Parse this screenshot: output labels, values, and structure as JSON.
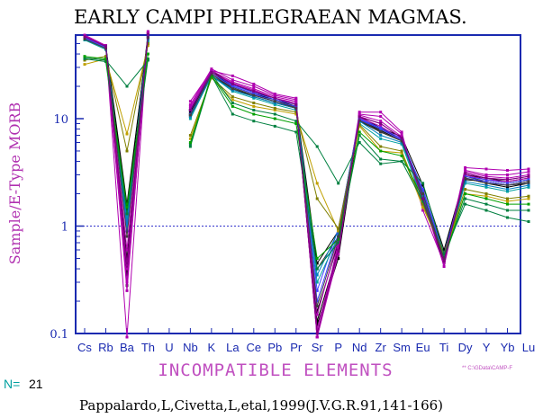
{
  "chart_data": {
    "type": "line",
    "title": "EARLY CAMPI PHLEGRAEAN MAGMAS.",
    "ylabel": "Sample/E-Type MORB",
    "xlabel": "INCOMPATIBLE ELEMENTS",
    "yscale": "log",
    "ylim": [
      0.1,
      60
    ],
    "yticks": [
      "0.1",
      "1",
      "10"
    ],
    "reference_line": 1,
    "categories": [
      "Cs",
      "Rb",
      "Ba",
      "Th",
      "U",
      "Nb",
      "K",
      "La",
      "Ce",
      "Pb",
      "Pr",
      "Sr",
      "P",
      "Nd",
      "Zr",
      "Sm",
      "Eu",
      "Ti",
      "Dy",
      "Y",
      "Yb",
      "Lu"
    ],
    "file_note": "** C:\\GData\\CAMP-F",
    "n_label": "N=",
    "n_value": "21",
    "citation": "Pappalardo,L,Civetta,L,etal,1999(J.V.G.R.91,141-166)",
    "series": [
      {
        "color": "#000000",
        "values": [
          58,
          48,
          1.6,
          58,
          null,
          11,
          26,
          19,
          16,
          14,
          12.5,
          0.13,
          0.6,
          9.5,
          7.5,
          6.2,
          2.2,
          0.5,
          2.8,
          2.5,
          2.3,
          2.5
        ]
      },
      {
        "color": "#000000",
        "values": [
          57,
          47,
          0.35,
          60,
          null,
          11.5,
          27,
          20,
          17,
          15,
          13,
          0.16,
          0.7,
          10,
          8,
          6.5,
          2.0,
          0.55,
          3.0,
          2.7,
          2.5,
          2.7
        ]
      },
      {
        "color": "#000000",
        "values": [
          59,
          47,
          1.4,
          62,
          null,
          12,
          28,
          21,
          17.5,
          15.5,
          13.5,
          0.45,
          0.9,
          10.5,
          8.2,
          6.8,
          2.4,
          0.6,
          3.0,
          2.8,
          2.6,
          2.8
        ]
      },
      {
        "color": "#000000",
        "values": [
          58,
          46,
          0.5,
          56,
          null,
          10.5,
          25,
          19,
          16.5,
          14.5,
          12.5,
          0.12,
          0.5,
          9.8,
          7.8,
          6.2,
          1.8,
          0.45,
          2.7,
          2.6,
          2.4,
          2.6
        ]
      },
      {
        "color": "#333333",
        "values": [
          56,
          46,
          0.28,
          58,
          null,
          11,
          26,
          19.5,
          16.5,
          14.5,
          12.8,
          0.4,
          0.8,
          10,
          7.5,
          6.3,
          2.2,
          0.5,
          2.9,
          2.6,
          2.4,
          2.5
        ]
      },
      {
        "color": "#b000b0",
        "values": [
          60,
          48,
          0.02,
          66,
          null,
          14.5,
          28,
          25,
          21,
          17,
          15.5,
          0.075,
          0.7,
          11.5,
          11.5,
          7.5,
          1.4,
          0.45,
          3.5,
          3.4,
          3.3,
          3.4
        ]
      },
      {
        "color": "#b000b0",
        "values": [
          59,
          48,
          0.25,
          64,
          null,
          13.5,
          29,
          23,
          20,
          16.5,
          15,
          0.055,
          0.6,
          11,
          10.5,
          7.2,
          1.6,
          0.5,
          3.3,
          3.0,
          3.0,
          3.2
        ]
      },
      {
        "color": "#b000b0",
        "values": [
          58,
          47,
          0.3,
          63,
          null,
          13,
          28,
          22,
          19,
          16,
          14.5,
          0.09,
          0.55,
          10.8,
          9.5,
          6.8,
          1.8,
          0.42,
          3.2,
          2.9,
          2.8,
          3.0
        ]
      },
      {
        "color": "#b000b0",
        "values": [
          58,
          46,
          0.4,
          62,
          null,
          12.5,
          27,
          21.5,
          18.5,
          15.5,
          14,
          0.11,
          0.65,
          10.5,
          9,
          6.6,
          1.9,
          0.48,
          3.1,
          2.8,
          2.7,
          2.9
        ]
      },
      {
        "color": "#b000b0",
        "values": [
          57,
          46,
          0.6,
          61,
          null,
          12,
          27,
          21,
          18,
          15.5,
          13.5,
          0.15,
          0.75,
          10.2,
          8.5,
          6.4,
          2.0,
          0.5,
          3.0,
          2.7,
          2.6,
          2.8
        ]
      },
      {
        "color": "#4040ff",
        "values": [
          57,
          47,
          0.9,
          60,
          null,
          12,
          27,
          20.5,
          17.5,
          15,
          13.5,
          0.2,
          0.85,
          10,
          8.2,
          6.5,
          2.1,
          0.52,
          2.9,
          2.7,
          2.5,
          2.7
        ]
      },
      {
        "color": "#4040ff",
        "values": [
          56,
          46,
          1.1,
          58,
          null,
          11,
          26,
          20,
          17,
          14.5,
          13,
          0.25,
          0.95,
          9.8,
          8,
          6.3,
          2.2,
          0.55,
          2.8,
          2.6,
          2.4,
          2.6
        ]
      },
      {
        "color": "#00a0a0",
        "values": [
          54,
          44,
          1.2,
          52,
          null,
          10,
          25,
          18,
          15.5,
          13.5,
          12,
          0.3,
          0.8,
          9,
          6.5,
          5.8,
          1.7,
          0.5,
          2.5,
          2.3,
          2.1,
          2.3
        ]
      },
      {
        "color": "#0080c0",
        "values": [
          55,
          45,
          1.0,
          55,
          null,
          10.5,
          25,
          18.5,
          16,
          14,
          12.5,
          0.35,
          0.9,
          9.5,
          7,
          6.0,
          1.9,
          0.52,
          2.6,
          2.4,
          2.2,
          2.4
        ]
      },
      {
        "color": "#c0a000",
        "values": [
          32,
          36,
          7.2,
          48,
          null,
          6.5,
          24,
          15,
          13,
          12,
          11,
          2.5,
          0.9,
          8.5,
          5.0,
          4.8,
          1.5,
          0.55,
          2.0,
          1.9,
          1.7,
          1.8
        ]
      },
      {
        "color": "#808000",
        "values": [
          35,
          38,
          5.0,
          50,
          null,
          7.0,
          24,
          16,
          14,
          12.5,
          11.5,
          1.8,
          0.95,
          8.8,
          5.5,
          5.0,
          1.6,
          0.55,
          2.2,
          2.0,
          1.8,
          1.9
        ]
      },
      {
        "color": "#008040",
        "values": [
          37,
          35,
          20,
          35,
          null,
          5.8,
          26,
          14,
          12,
          11,
          9.5,
          5.5,
          2.5,
          6.0,
          3.8,
          4.0,
          2.5,
          0.55,
          1.6,
          1.4,
          1.2,
          1.1
        ]
      },
      {
        "color": "#008040",
        "values": [
          36,
          34,
          1.3,
          36,
          null,
          5.5,
          25,
          11,
          9.5,
          8.5,
          7.5,
          0.4,
          0.7,
          7.0,
          4.2,
          4.0,
          1.7,
          0.5,
          1.8,
          1.6,
          1.4,
          1.4
        ]
      },
      {
        "color": "#00a000",
        "values": [
          38,
          36,
          1.5,
          40,
          null,
          6.0,
          25,
          13,
          11,
          10,
          9,
          0.5,
          0.75,
          7.5,
          5.0,
          4.5,
          1.8,
          0.5,
          2.0,
          1.8,
          1.6,
          1.6
        ]
      },
      {
        "color": "#404040",
        "values": [
          55,
          45,
          0.8,
          57,
          null,
          10.8,
          26,
          19,
          16.5,
          14.5,
          12.5,
          0.18,
          0.8,
          9.6,
          7.6,
          6.2,
          2.0,
          0.5,
          2.8,
          2.5,
          2.4,
          2.6
        ]
      },
      {
        "color": "#800080",
        "values": [
          58,
          47,
          0.45,
          61,
          null,
          12,
          27,
          21,
          18,
          15.5,
          13.5,
          0.1,
          0.6,
          10.4,
          9,
          6.6,
          1.8,
          0.47,
          3.1,
          2.8,
          2.7,
          2.9
        ]
      }
    ]
  }
}
